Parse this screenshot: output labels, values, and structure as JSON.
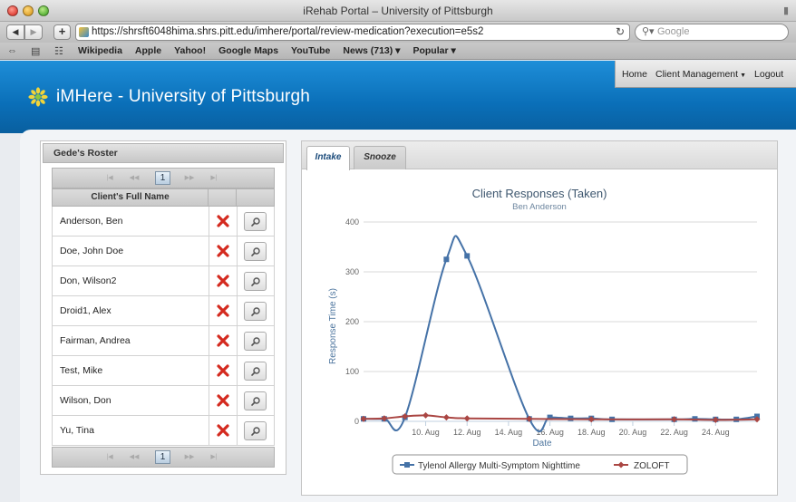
{
  "browser": {
    "window_title": "iRehab Portal – University of Pittsburgh",
    "url": "https://shrsft6048hima.shrs.pitt.edu/imhere/portal/review-medication?execution=e5s2",
    "search_placeholder": "Google",
    "bookmarks": [
      "Wikipedia",
      "Apple",
      "Yahoo!",
      "Google Maps",
      "YouTube",
      "News (713) ▾",
      "Popular ▾"
    ]
  },
  "header": {
    "app_title": "iMHere - University of Pittsburgh",
    "nav": {
      "home": "Home",
      "client_management": "Client Management",
      "logout": "Logout"
    }
  },
  "roster": {
    "title": "Gede's Roster",
    "current_page": "1",
    "column_header": "Client's Full Name",
    "clients": [
      "Anderson, Ben",
      "Doe, John Doe",
      "Don, Wilson2",
      "Droid1, Alex",
      "Fairman, Andrea",
      "Test, Mike",
      "Wilson, Don",
      "Yu, Tina"
    ]
  },
  "tabs": {
    "intake": "Intake",
    "snooze": "Snooze"
  },
  "chart_data": {
    "type": "line",
    "title": "Client Responses (Taken)",
    "subtitle": "Ben Anderson",
    "xlabel": "Date",
    "ylabel": "Response Time (s)",
    "ylim": [
      0,
      400
    ],
    "yticks": [
      "0",
      "100",
      "200",
      "300",
      "400"
    ],
    "xticks": [
      "10. Aug",
      "12. Aug",
      "14. Aug",
      "16. Aug",
      "18. Aug",
      "20. Aug",
      "22. Aug",
      "24. Aug"
    ],
    "grid": true,
    "legend_position": "bottom-center",
    "series": [
      {
        "name": "Tylenol Allergy Multi-Symptom Nighttime",
        "color": "#4572A7",
        "points": [
          [
            "7. Aug",
            5
          ],
          [
            "8. Aug",
            5
          ],
          [
            "9. Aug",
            8
          ],
          [
            "11. Aug",
            325
          ],
          [
            "12. Aug",
            332
          ],
          [
            "15. Aug",
            5
          ],
          [
            "16. Aug",
            8
          ],
          [
            "17. Aug",
            6
          ],
          [
            "18. Aug",
            6
          ],
          [
            "19. Aug",
            4
          ],
          [
            "22. Aug",
            4
          ],
          [
            "23. Aug",
            5
          ],
          [
            "24. Aug",
            4
          ],
          [
            "25. Aug",
            4
          ],
          [
            "26. Aug",
            10
          ]
        ]
      },
      {
        "name": "ZOLOFT",
        "color": "#AA4643",
        "points": [
          [
            "7. Aug",
            5
          ],
          [
            "8. Aug",
            6
          ],
          [
            "9. Aug",
            10
          ],
          [
            "10. Aug",
            12
          ],
          [
            "11. Aug",
            8
          ],
          [
            "12. Aug",
            6
          ],
          [
            "15. Aug",
            5
          ],
          [
            "18. Aug",
            4
          ],
          [
            "22. Aug",
            4
          ],
          [
            "24. Aug",
            3
          ],
          [
            "26. Aug",
            4
          ]
        ]
      }
    ]
  },
  "colors": {
    "header_blue": "#0a6fb8",
    "delete_red": "#d42a1f",
    "link_blue": "#1a4a7a"
  }
}
